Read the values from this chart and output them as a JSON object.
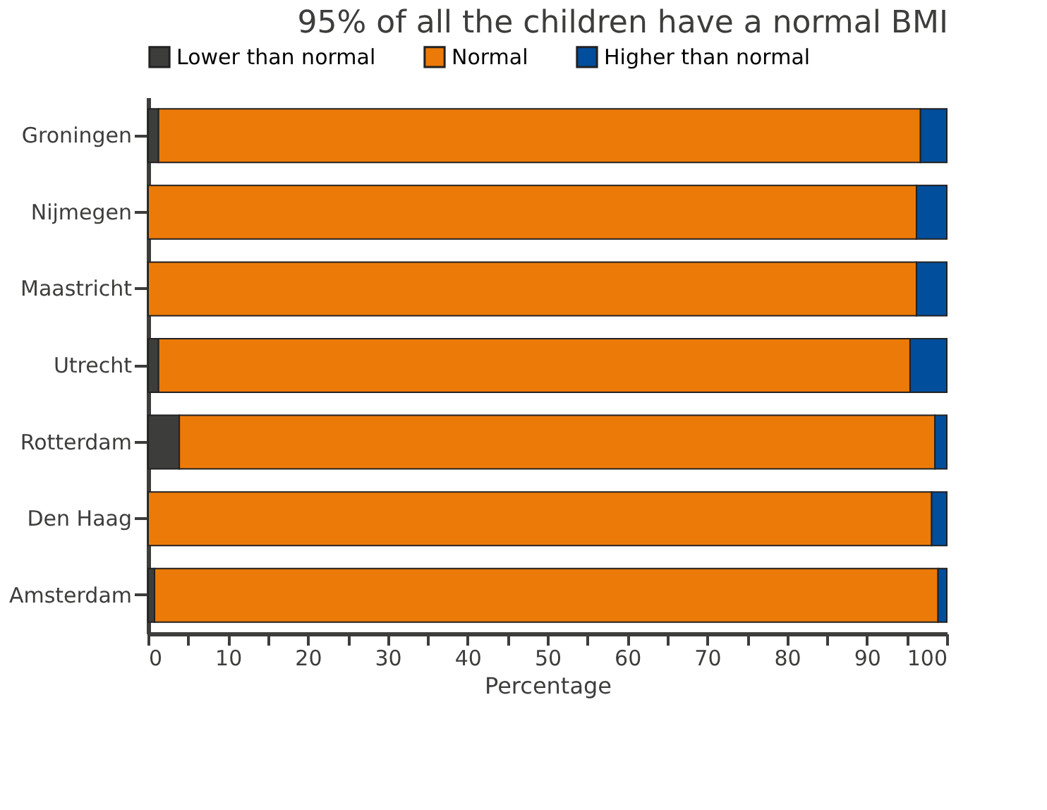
{
  "chart_data": {
    "type": "bar",
    "orientation": "horizontal",
    "stacked": true,
    "title": "95% of all the children have a normal BMI",
    "xlabel": "Percentage",
    "categories": [
      "Groningen",
      "Nijmegen",
      "Maastricht",
      "Utrecht",
      "Rotterdam",
      "Den Haag",
      "Amsterdam"
    ],
    "series": [
      {
        "name": "Lower than normal",
        "color": "#3d3d3b",
        "values": [
          1.3,
          0,
          0,
          1.3,
          3.9,
          0,
          0.8
        ]
      },
      {
        "name": "Normal",
        "color": "#ec7a08",
        "values": [
          95.4,
          96.2,
          96.2,
          94.1,
          94.6,
          98.1,
          98.1
        ]
      },
      {
        "name": "Higher than normal",
        "color": "#014e9c",
        "values": [
          3.3,
          3.8,
          3.8,
          4.6,
          1.5,
          1.9,
          1.1
        ]
      }
    ],
    "xlim": [
      0,
      100
    ],
    "xticks": [
      0,
      {
        "value": 5,
        "label": null
      },
      10,
      {
        "value": 15,
        "label": null
      },
      20,
      {
        "value": 25,
        "label": null
      },
      30,
      {
        "value": 35,
        "label": null
      },
      40,
      {
        "value": 45,
        "label": null
      },
      50,
      {
        "value": 55,
        "label": null
      },
      60,
      {
        "value": 65,
        "label": null
      },
      70,
      {
        "value": 75,
        "label": null
      },
      80,
      {
        "value": 85,
        "label": null
      },
      90,
      {
        "value": 95,
        "label": null
      },
      100
    ],
    "legend": "top",
    "grid": false
  }
}
